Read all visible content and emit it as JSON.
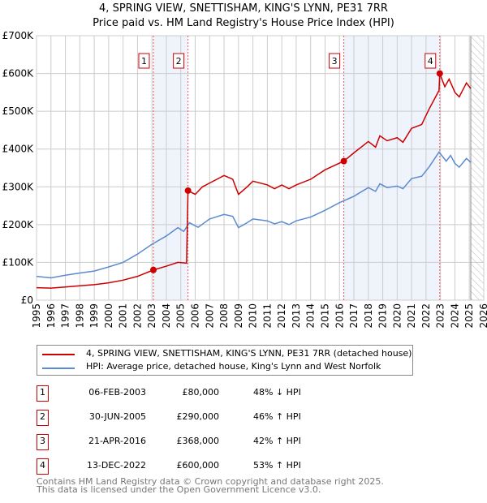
{
  "chart_data": {
    "type": "line",
    "title": "4, SPRING VIEW, SNETTISHAM, KING'S LYNN, PE31 7RR",
    "subtitle": "Price paid vs. HM Land Registry's House Price Index (HPI)",
    "xlim": [
      1995,
      2026
    ],
    "ylim": [
      0,
      700000
    ],
    "x_ticks": [
      "1995",
      "1996",
      "1997",
      "1998",
      "1999",
      "2000",
      "2001",
      "2002",
      "2003",
      "2004",
      "2005",
      "2006",
      "2007",
      "2008",
      "2009",
      "2010",
      "2011",
      "2012",
      "2013",
      "2014",
      "2015",
      "2016",
      "2017",
      "2018",
      "2019",
      "2020",
      "2021",
      "2022",
      "2023",
      "2024",
      "2025",
      "2026"
    ],
    "y_ticks": [
      {
        "v": 0,
        "label": "£0"
      },
      {
        "v": 100000,
        "label": "£100K"
      },
      {
        "v": 200000,
        "label": "£200K"
      },
      {
        "v": 300000,
        "label": "£300K"
      },
      {
        "v": 400000,
        "label": "£400K"
      },
      {
        "v": 500000,
        "label": "£500K"
      },
      {
        "v": 600000,
        "label": "£600K"
      },
      {
        "v": 700000,
        "label": "£700K"
      }
    ],
    "series": [
      {
        "name": "4, SPRING VIEW, SNETTISHAM, KING'S LYNN, PE31 7RR (detached house)",
        "color": "#cc0000",
        "points": [
          [
            1995,
            33000
          ],
          [
            1996,
            32000
          ],
          [
            1997,
            35000
          ],
          [
            1998,
            38000
          ],
          [
            1999,
            41000
          ],
          [
            2000,
            46000
          ],
          [
            2001,
            53000
          ],
          [
            2002,
            63000
          ],
          [
            2003.1,
            80000
          ],
          [
            2004,
            90000
          ],
          [
            2004.8,
            100000
          ],
          [
            2005.4,
            98000
          ],
          [
            2005.5,
            290000
          ],
          [
            2006,
            280000
          ],
          [
            2006.5,
            300000
          ],
          [
            2007,
            310000
          ],
          [
            2008,
            330000
          ],
          [
            2008.6,
            320000
          ],
          [
            2009,
            280000
          ],
          [
            2009.6,
            300000
          ],
          [
            2010,
            315000
          ],
          [
            2011,
            305000
          ],
          [
            2011.5,
            295000
          ],
          [
            2012,
            305000
          ],
          [
            2012.5,
            295000
          ],
          [
            2013,
            305000
          ],
          [
            2014,
            320000
          ],
          [
            2015,
            345000
          ],
          [
            2016.3,
            368000
          ],
          [
            2017,
            390000
          ],
          [
            2018,
            420000
          ],
          [
            2018.5,
            405000
          ],
          [
            2018.8,
            435000
          ],
          [
            2019.3,
            422000
          ],
          [
            2020,
            430000
          ],
          [
            2020.4,
            418000
          ],
          [
            2021,
            455000
          ],
          [
            2021.7,
            465000
          ],
          [
            2022.2,
            505000
          ],
          [
            2022.9,
            555000
          ],
          [
            2022.95,
            600000
          ],
          [
            2023.3,
            565000
          ],
          [
            2023.6,
            585000
          ],
          [
            2024,
            550000
          ],
          [
            2024.3,
            538000
          ],
          [
            2024.8,
            575000
          ],
          [
            2025.1,
            560000
          ]
        ]
      },
      {
        "name": "HPI: Average price, detached house, King's Lynn and West Norfolk",
        "color": "#5b8bd0",
        "points": [
          [
            1995,
            63000
          ],
          [
            1996,
            59000
          ],
          [
            1997,
            66000
          ],
          [
            1998,
            72000
          ],
          [
            1999,
            77000
          ],
          [
            2000,
            88000
          ],
          [
            2001,
            100000
          ],
          [
            2002,
            122000
          ],
          [
            2003,
            148000
          ],
          [
            2004,
            170000
          ],
          [
            2004.8,
            192000
          ],
          [
            2005.2,
            182000
          ],
          [
            2005.6,
            205000
          ],
          [
            2006.2,
            193000
          ],
          [
            2007,
            215000
          ],
          [
            2008,
            227000
          ],
          [
            2008.6,
            222000
          ],
          [
            2009,
            192000
          ],
          [
            2009.6,
            205000
          ],
          [
            2010,
            215000
          ],
          [
            2011,
            210000
          ],
          [
            2011.5,
            202000
          ],
          [
            2012,
            208000
          ],
          [
            2012.5,
            200000
          ],
          [
            2013,
            210000
          ],
          [
            2014,
            220000
          ],
          [
            2015,
            238000
          ],
          [
            2016,
            258000
          ],
          [
            2017,
            275000
          ],
          [
            2018,
            298000
          ],
          [
            2018.5,
            288000
          ],
          [
            2018.8,
            308000
          ],
          [
            2019.3,
            298000
          ],
          [
            2020,
            302000
          ],
          [
            2020.4,
            295000
          ],
          [
            2021,
            322000
          ],
          [
            2021.7,
            328000
          ],
          [
            2022.2,
            352000
          ],
          [
            2022.9,
            392000
          ],
          [
            2023.4,
            368000
          ],
          [
            2023.7,
            383000
          ],
          [
            2024,
            362000
          ],
          [
            2024.3,
            352000
          ],
          [
            2024.8,
            375000
          ],
          [
            2025.1,
            365000
          ]
        ]
      }
    ],
    "sales": [
      {
        "n": "1",
        "x": 2003.1,
        "y": 80000,
        "date": "06-FEB-2003",
        "price": "£80,000",
        "hpi": "48% ↓ HPI"
      },
      {
        "n": "2",
        "x": 2005.5,
        "y": 290000,
        "date": "30-JUN-2005",
        "price": "£290,000",
        "hpi": "46% ↑ HPI"
      },
      {
        "n": "3",
        "x": 2016.3,
        "y": 368000,
        "date": "21-APR-2016",
        "price": "£368,000",
        "hpi": "42% ↑ HPI"
      },
      {
        "n": "4",
        "x": 2022.95,
        "y": 600000,
        "date": "13-DEC-2022",
        "price": "£600,000",
        "hpi": "53% ↑ HPI"
      }
    ],
    "shaded_ranges": [
      [
        2003.1,
        2005.5
      ],
      [
        2016.3,
        2022.95
      ]
    ],
    "forecast_from": 2025.1
  },
  "footer": {
    "line1": "Contains HM Land Registry data © Crown copyright and database right 2025.",
    "line2": "This data is licensed under the Open Government Licence v3.0."
  }
}
